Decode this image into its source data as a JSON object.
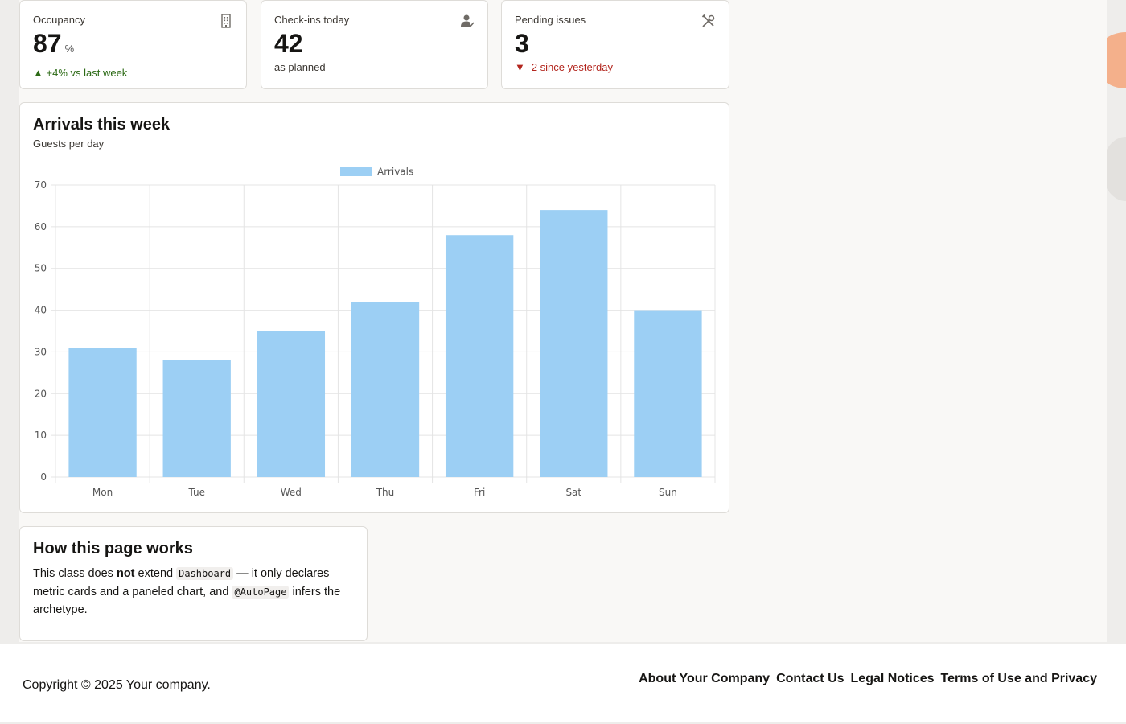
{
  "metrics": [
    {
      "label": "Occupancy",
      "value": "87",
      "unit": "%",
      "sub_icon": "▲",
      "sub_text": "+4% vs last week",
      "trend": "up",
      "icon": "building-icon"
    },
    {
      "label": "Check-ins today",
      "value": "42",
      "unit": "",
      "sub_icon": "",
      "sub_text": "as planned",
      "trend": "neutral",
      "icon": "user-check-icon"
    },
    {
      "label": "Pending issues",
      "value": "3",
      "unit": "",
      "sub_icon": "▼",
      "sub_text": "-2 since yesterday",
      "trend": "down",
      "icon": "tools-icon"
    }
  ],
  "chart": {
    "title": "Arrivals this week",
    "subtitle": "Guests per day"
  },
  "chart_data": {
    "type": "bar",
    "categories": [
      "Mon",
      "Tue",
      "Wed",
      "Thu",
      "Fri",
      "Sat",
      "Sun"
    ],
    "series": [
      {
        "name": "Arrivals",
        "values": [
          31,
          28,
          35,
          42,
          58,
          64,
          40
        ]
      }
    ],
    "ylim": [
      0,
      70
    ],
    "yticks": [
      0,
      10,
      20,
      30,
      40,
      50,
      60,
      70
    ],
    "grid": true,
    "legend": "top-center",
    "color": "#9ccff4"
  },
  "info": {
    "title": "How this page works",
    "text_1": "This class does ",
    "text_bold": "not",
    "text_2": " extend ",
    "code_1": "Dashboard",
    "text_3": " — it only declares metric cards and a paneled chart, and ",
    "code_2": "@AutoPage",
    "text_4": " infers the archetype."
  },
  "footer": {
    "copyright": "Copyright © 2025 Your company.",
    "links": [
      "About Your Company",
      "Contact Us",
      "Legal Notices",
      "Terms of Use and Privacy"
    ]
  }
}
